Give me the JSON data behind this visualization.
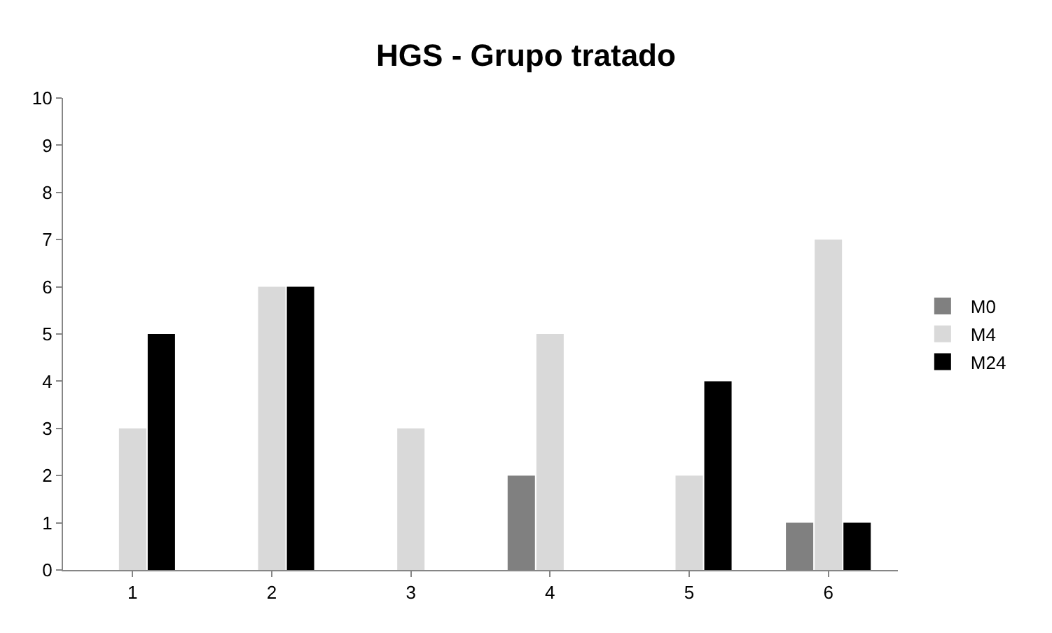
{
  "chart_data": {
    "type": "bar",
    "title": "HGS - Grupo tratado",
    "categories": [
      "1",
      "2",
      "3",
      "4",
      "5",
      "6"
    ],
    "series": [
      {
        "name": "M0",
        "color": "#808080",
        "values": [
          0,
          0,
          0,
          2,
          0,
          1
        ]
      },
      {
        "name": "M4",
        "color": "#d9d9d9",
        "values": [
          3,
          6,
          3,
          5,
          2,
          7
        ]
      },
      {
        "name": "M24",
        "color": "#000000",
        "values": [
          5,
          6,
          0,
          0,
          4,
          1
        ]
      }
    ],
    "ylim": [
      0,
      10
    ],
    "yticks": [
      0,
      1,
      2,
      3,
      4,
      5,
      6,
      7,
      8,
      9,
      10
    ],
    "grid": false,
    "legend": "right"
  }
}
